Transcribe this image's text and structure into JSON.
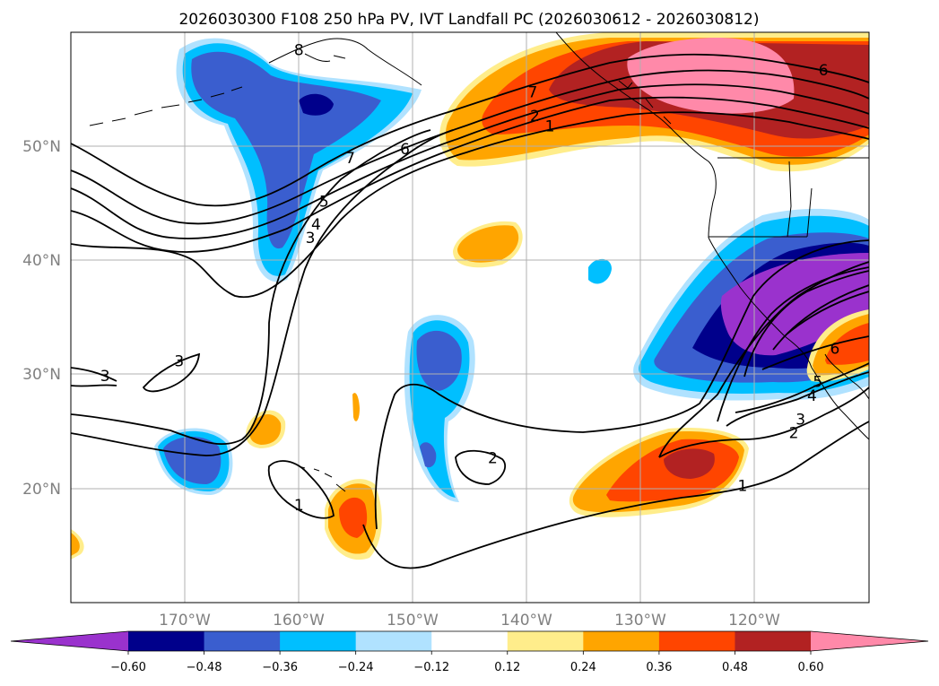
{
  "map": {
    "title": "2026030300 F108 250 hPa PV, IVT Landfall PC (2026030612 - 2026030812)",
    "projection": "PlateCarree",
    "extent": {
      "lon": [
        -180,
        -110
      ],
      "lat": [
        10,
        60
      ]
    },
    "grid": true,
    "lat_ticks": [
      {
        "value": 50,
        "label": "50°N"
      },
      {
        "value": 40,
        "label": "40°N"
      },
      {
        "value": 30,
        "label": "30°N"
      },
      {
        "value": 20,
        "label": "20°N"
      }
    ],
    "lon_ticks": [
      {
        "value": -170,
        "label": "170°W"
      },
      {
        "value": -160,
        "label": "160°W"
      },
      {
        "value": -150,
        "label": "150°W"
      },
      {
        "value": -140,
        "label": "140°W"
      },
      {
        "value": -130,
        "label": "130°W"
      },
      {
        "value": -120,
        "label": "120°W"
      }
    ],
    "pv_contour_labels": [
      {
        "text": "8",
        "lon": -160,
        "lat": 58.4
      },
      {
        "text": "6",
        "lon": -114,
        "lat": 56.6
      },
      {
        "text": "7",
        "lon": -139.5,
        "lat": 54.7
      },
      {
        "text": "6",
        "lon": -150.7,
        "lat": 49.7
      },
      {
        "text": "7",
        "lon": -155.5,
        "lat": 48.9
      },
      {
        "text": "2",
        "lon": -139.3,
        "lat": 52.6
      },
      {
        "text": "1",
        "lon": -138,
        "lat": 51.7
      },
      {
        "text": "5",
        "lon": -157.8,
        "lat": 45.1
      },
      {
        "text": "4",
        "lon": -158.5,
        "lat": 43.1
      },
      {
        "text": "3",
        "lon": -159,
        "lat": 41.9
      },
      {
        "text": "3",
        "lon": -177,
        "lat": 29.8
      },
      {
        "text": "3",
        "lon": -170.5,
        "lat": 31.1
      },
      {
        "text": "1",
        "lon": -160,
        "lat": 18.5
      },
      {
        "text": "2",
        "lon": -143,
        "lat": 22.6
      },
      {
        "text": "1",
        "lon": -121.1,
        "lat": 20.2
      },
      {
        "text": "6",
        "lon": -113,
        "lat": 32.2
      },
      {
        "text": "5",
        "lon": -114.5,
        "lat": 29.3
      },
      {
        "text": "4",
        "lon": -115,
        "lat": 28.1
      },
      {
        "text": "3",
        "lon": -116,
        "lat": 26
      },
      {
        "text": "2",
        "lon": -116.6,
        "lat": 24.8
      }
    ],
    "colors": {
      "land_outline": "#000000",
      "gridline": "#b0b0b0"
    }
  },
  "colorbar": {
    "orientation": "horizontal",
    "extend": "both",
    "ticks": [
      "−0.60",
      "−0.48",
      "−0.36",
      "−0.24",
      "−0.12",
      "0.12",
      "0.24",
      "0.36",
      "0.48",
      "0.60"
    ],
    "colors": [
      "#9a32cd",
      "#00008b",
      "#3a5ecf",
      "#00bfff",
      "#b0e2ff",
      "#ffffff",
      "#ffed8b",
      "#ffa500",
      "#ff4500",
      "#b22222",
      "#ff89a9"
    ]
  }
}
